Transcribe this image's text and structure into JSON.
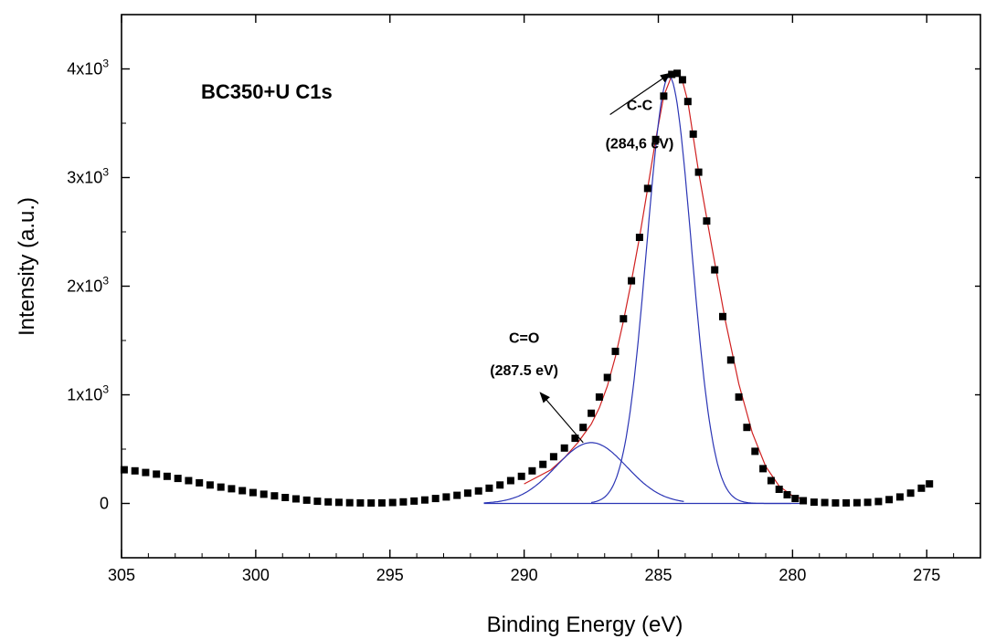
{
  "chart_data": {
    "type": "scatter",
    "title": "BC350+U  C1s",
    "xlabel": "Binding Energy (eV)",
    "ylabel": "Intensity (a.u.)",
    "xlim": [
      305,
      273
    ],
    "ylim": [
      -500,
      4500
    ],
    "x_reversed": true,
    "grid": false,
    "x_ticks": [
      305,
      300,
      295,
      290,
      285,
      280,
      275
    ],
    "x_tick_labels": [
      "305",
      "300",
      "295",
      "290",
      "285",
      "280",
      "275"
    ],
    "y_ticks": [
      0,
      1000,
      2000,
      3000,
      4000
    ],
    "y_tick_labels": [
      {
        "base": "0",
        "exp": ""
      },
      {
        "base": "1x10",
        "exp": "3"
      },
      {
        "base": "2x10",
        "exp": "3"
      },
      {
        "base": "3x10",
        "exp": "3"
      },
      {
        "base": "4x10",
        "exp": "3"
      }
    ],
    "series": [
      {
        "kind": "measured-points",
        "color": "#000000",
        "x": [
          304.9,
          304.5,
          304.1,
          303.7,
          303.3,
          302.9,
          302.5,
          302.1,
          301.7,
          301.3,
          300.9,
          300.5,
          300.1,
          299.7,
          299.3,
          298.9,
          298.5,
          298.1,
          297.7,
          297.3,
          296.9,
          296.5,
          296.1,
          295.7,
          295.3,
          294.9,
          294.5,
          294.1,
          293.7,
          293.3,
          292.9,
          292.5,
          292.1,
          291.7,
          291.3,
          290.9,
          290.5,
          290.1,
          289.7,
          289.3,
          288.9,
          288.5,
          288.1,
          287.8,
          287.5,
          287.2,
          286.9,
          286.6,
          286.3,
          286.0,
          285.7,
          285.4,
          285.1,
          284.8,
          284.5,
          284.3,
          284.1,
          283.9,
          283.7,
          283.5,
          283.2,
          282.9,
          282.6,
          282.3,
          282.0,
          281.7,
          281.4,
          281.1,
          280.8,
          280.5,
          280.2,
          279.9,
          279.6,
          279.2,
          278.8,
          278.4,
          278.0,
          277.6,
          277.2,
          276.8,
          276.4,
          276.0,
          275.6,
          275.2,
          274.9
        ],
        "y": [
          310,
          300,
          285,
          270,
          250,
          230,
          210,
          190,
          170,
          150,
          135,
          118,
          100,
          85,
          70,
          55,
          42,
          30,
          20,
          14,
          10,
          7,
          5,
          4,
          5,
          8,
          14,
          22,
          32,
          45,
          60,
          75,
          95,
          115,
          140,
          170,
          210,
          250,
          300,
          360,
          430,
          510,
          600,
          700,
          830,
          980,
          1160,
          1400,
          1700,
          2050,
          2450,
          2900,
          3350,
          3750,
          3950,
          3960,
          3900,
          3700,
          3400,
          3050,
          2600,
          2150,
          1720,
          1320,
          980,
          700,
          480,
          320,
          210,
          130,
          80,
          45,
          25,
          12,
          8,
          5,
          5,
          7,
          10,
          18,
          35,
          60,
          95,
          140,
          180
        ]
      },
      {
        "kind": "fit-envelope",
        "color": "#d02020",
        "x": [
          290,
          289,
          288.5,
          288,
          287.5,
          287.2,
          286.9,
          286.6,
          286.3,
          286.0,
          285.7,
          285.4,
          285.1,
          284.8,
          284.5,
          284.3,
          284.1,
          283.9,
          283.5,
          283.0,
          282.5,
          282.0,
          281.5,
          281.0,
          280.5,
          280.0,
          279.5
        ],
        "y": [
          180,
          310,
          420,
          560,
          730,
          880,
          1080,
          1350,
          1680,
          2050,
          2450,
          2900,
          3350,
          3750,
          3940,
          3950,
          3890,
          3700,
          3050,
          2350,
          1680,
          1100,
          650,
          340,
          160,
          70,
          30
        ]
      },
      {
        "kind": "fit-peak",
        "name": "C-C",
        "color": "#2b35b5",
        "center": 284.6,
        "height": 3930,
        "fwhm": 1.95,
        "x_range": [
          287.5,
          280.0
        ]
      },
      {
        "kind": "fit-peak",
        "name": "C=O",
        "color": "#2b35b5",
        "center": 287.5,
        "height": 560,
        "fwhm": 3.1,
        "x_range": [
          291.5,
          284.0
        ]
      },
      {
        "kind": "baseline",
        "color": "#2b35b5",
        "x_range": [
          291.5,
          279.5
        ],
        "y": 0
      }
    ],
    "annotations": [
      {
        "id": "cc",
        "label_line1": "C-C",
        "label_line2": "(284,6 eV)",
        "text_x": 285.7,
        "text_y1": 3620,
        "text_y2": 3270,
        "arrow_from_x": 286.8,
        "arrow_from_y": 3580,
        "arrow_to_x": 284.55,
        "arrow_to_y": 3960
      },
      {
        "id": "co",
        "label_line1": "C=O",
        "label_line2": "(287.5 eV)",
        "text_x": 290.0,
        "text_y1": 1480,
        "text_y2": 1180,
        "arrow_from_x": 287.8,
        "arrow_from_y": 560,
        "arrow_to_x": 289.4,
        "arrow_to_y": 1020
      }
    ]
  }
}
